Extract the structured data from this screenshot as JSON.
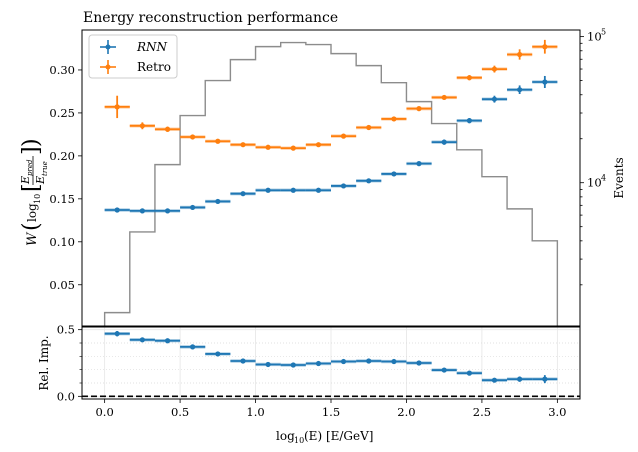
{
  "chart_data": [
    {
      "id": "main",
      "type": "scatter",
      "title": "Energy reconstruction performance",
      "xlabel": "log10(E) [E/GeV]",
      "ylabel": "W(log10[E_pred/E_true])",
      "ylabel_right": "Events",
      "xlim": [
        -0.15,
        3.15
      ],
      "ylim": [
        0.002,
        0.3465
      ],
      "ylim_right_log": [
        1045,
        111000
      ],
      "yticks": [
        0.05,
        0.1,
        0.15,
        0.2,
        0.25,
        0.3
      ],
      "ytick_labels": [
        "0.05",
        "0.10",
        "0.15",
        "0.20",
        "0.25",
        "0.30"
      ],
      "yticks_right": [
        10000,
        100000
      ],
      "ytick_labels_right": [
        "10^4",
        "10^5"
      ],
      "grid": false,
      "legend": {
        "position": "top-left",
        "entries": [
          "RNN",
          "Retro"
        ]
      },
      "bin_edges": [
        0.0,
        0.1667,
        0.3333,
        0.5,
        0.6667,
        0.8333,
        1.0,
        1.1667,
        1.3333,
        1.5,
        1.6667,
        1.8333,
        2.0,
        2.1667,
        2.3333,
        2.5,
        2.6667,
        2.8333,
        3.0
      ],
      "series": [
        {
          "name": "RNN",
          "color": "#1f77b4",
          "x": [
            0.083,
            0.25,
            0.417,
            0.583,
            0.75,
            0.917,
            1.083,
            1.25,
            1.417,
            1.583,
            1.75,
            1.917,
            2.083,
            2.25,
            2.417,
            2.583,
            2.75,
            2.917
          ],
          "values": [
            0.137,
            0.136,
            0.136,
            0.14,
            0.147,
            0.156,
            0.16,
            0.16,
            0.16,
            0.165,
            0.171,
            0.179,
            0.191,
            0.216,
            0.241,
            0.266,
            0.277,
            0.286
          ],
          "yerr": [
            0.002,
            0.002,
            0.002,
            0.002,
            0.002,
            0.002,
            0.002,
            0.002,
            0.002,
            0.002,
            0.002,
            0.002,
            0.002,
            0.003,
            0.003,
            0.004,
            0.005,
            0.007
          ]
        },
        {
          "name": "Retro",
          "color": "#ff7f0e",
          "x": [
            0.083,
            0.25,
            0.417,
            0.583,
            0.75,
            0.917,
            1.083,
            1.25,
            1.417,
            1.583,
            1.75,
            1.917,
            2.083,
            2.25,
            2.417,
            2.583,
            2.75,
            2.917
          ],
          "values": [
            0.257,
            0.235,
            0.231,
            0.222,
            0.217,
            0.213,
            0.21,
            0.209,
            0.213,
            0.223,
            0.233,
            0.243,
            0.255,
            0.268,
            0.291,
            0.301,
            0.318,
            0.327
          ],
          "yerr": [
            0.013,
            0.004,
            0.003,
            0.002,
            0.002,
            0.002,
            0.002,
            0.002,
            0.002,
            0.002,
            0.002,
            0.002,
            0.002,
            0.002,
            0.003,
            0.004,
            0.006,
            0.008
          ]
        },
        {
          "name": "Events",
          "type": "histogram-step",
          "axis": "right-log",
          "color": "#808080",
          "values": [
            1290,
            4600,
            13300,
            28800,
            50000,
            69600,
            85400,
            91000,
            88200,
            76500,
            63300,
            48400,
            35900,
            25400,
            16800,
            11000,
            6620,
            4000
          ]
        }
      ]
    },
    {
      "id": "ratio",
      "type": "scatter",
      "xlabel": "log10(E) [E/GeV]",
      "ylabel": "Rel. Imp.",
      "xlim": [
        -0.15,
        3.15
      ],
      "ylim": [
        -0.02,
        0.52
      ],
      "xticks": [
        0.0,
        0.5,
        1.0,
        1.5,
        2.0,
        2.5,
        3.0
      ],
      "xtick_labels": [
        "0.0",
        "0.5",
        "1.0",
        "1.5",
        "2.0",
        "2.5",
        "3.0"
      ],
      "yticks": [
        0.0,
        0.5
      ],
      "ytick_labels": [
        "0.0",
        "0.5"
      ],
      "minor_gridlines_y": [
        0.1,
        0.2,
        0.3,
        0.4
      ],
      "reference_line": {
        "y": 0.0,
        "style": "dashed",
        "color": "#000000"
      },
      "grid": true,
      "series": [
        {
          "name": "Relative improvement",
          "color": "#1f77b4",
          "x": [
            0.083,
            0.25,
            0.417,
            0.583,
            0.75,
            0.917,
            1.083,
            1.25,
            1.417,
            1.583,
            1.75,
            1.917,
            2.083,
            2.25,
            2.417,
            2.583,
            2.75,
            2.917
          ],
          "values": [
            0.47,
            0.424,
            0.417,
            0.371,
            0.318,
            0.265,
            0.239,
            0.235,
            0.246,
            0.261,
            0.265,
            0.261,
            0.25,
            0.197,
            0.174,
            0.121,
            0.129,
            0.129
          ],
          "yerr": [
            0.02,
            0.01,
            0.01,
            0.01,
            0.008,
            0.008,
            0.008,
            0.008,
            0.008,
            0.008,
            0.008,
            0.008,
            0.008,
            0.01,
            0.01,
            0.015,
            0.02,
            0.03
          ]
        }
      ]
    }
  ],
  "text": {
    "title": "Energy reconstruction performance",
    "legend_rnn": "RNN",
    "legend_retro": "Retro",
    "ylabel_right": "Events",
    "ylabel_ratio": "Rel. Imp.",
    "xlabel_log": "log",
    "xlabel_sub": "10",
    "xlabel_rest": "(E) [E/GeV]",
    "ylabel_W": "W",
    "ylabel_log": "log",
    "ylabel_sub": "10",
    "ylabel_num": "E",
    "ylabel_num_sub": "pred",
    "ylabel_den": "E",
    "ylabel_den_sub": "true",
    "right_tick_1e4_base": "10",
    "right_tick_1e4_exp": "4",
    "right_tick_1e5_base": "10",
    "right_tick_1e5_exp": "5"
  }
}
